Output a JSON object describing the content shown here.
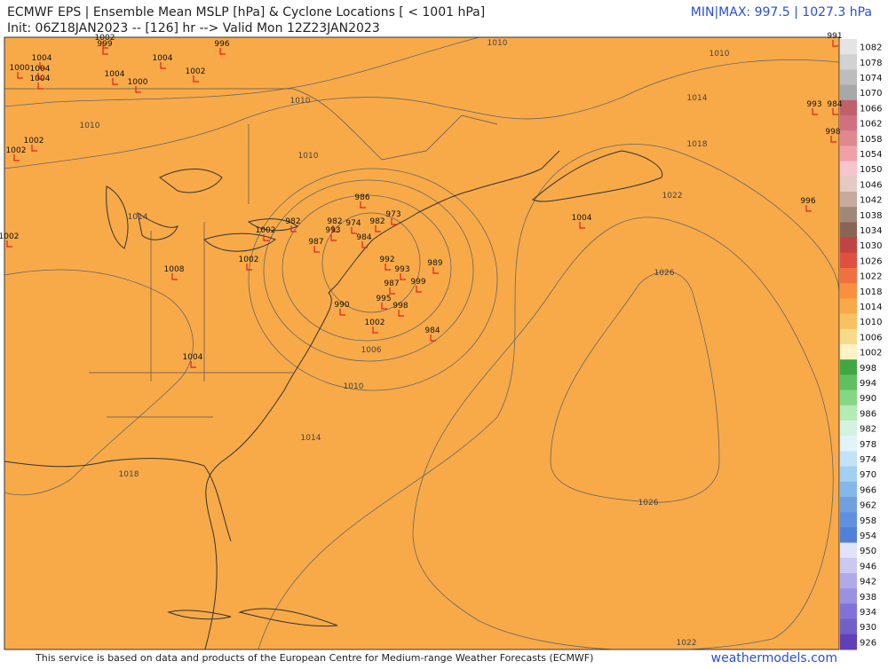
{
  "header": {
    "title": "ECMWF EPS | Ensemble Mean MSLP [hPa] & Cyclone Locations [ < 1001 hPa]",
    "init": "Init: 06Z18JAN2023 -- [126] hr --> Valid Mon 12Z23JAN2023",
    "minmax": "MIN|MAX: 997.5 | 1027.3 hPa"
  },
  "colorbar": {
    "labels": [
      1082,
      1078,
      1074,
      1070,
      1066,
      1062,
      1058,
      1054,
      1050,
      1046,
      1042,
      1038,
      1034,
      1030,
      1026,
      1022,
      1018,
      1014,
      1010,
      1006,
      1002,
      998,
      994,
      990,
      986,
      982,
      978,
      974,
      970,
      966,
      962,
      958,
      954,
      950,
      946,
      942,
      938,
      934,
      930,
      926
    ],
    "colors": [
      "#e4e4e4",
      "#d2d2d2",
      "#bdbdbd",
      "#a8a8a8",
      "#c0606a",
      "#d07080",
      "#e08890",
      "#f0a0a8",
      "#f8c4cc",
      "#e4cac2",
      "#c8aaa0",
      "#a08878",
      "#8a6454",
      "#c04444",
      "#e05040",
      "#f07040",
      "#f89040",
      "#f8aa48",
      "#f8c262",
      "#f8da8a",
      "#fff2c4",
      "#40a840",
      "#60c060",
      "#84d884",
      "#b4eab4",
      "#d4f2e2",
      "#e2f4f8",
      "#c2e2f8",
      "#a2d0f0",
      "#84b8e8",
      "#70a0e0",
      "#6090e0",
      "#5080d8",
      "#e2e2f8",
      "#cacaf0",
      "#b2aae8",
      "#9a92e0",
      "#8272d8",
      "#7060c8",
      "#6040b8"
    ]
  },
  "contour_labels": [
    1010,
    1010,
    1014,
    1018,
    1022,
    1026,
    1026,
    1022,
    1014,
    1010,
    1006,
    1010,
    1010,
    1010,
    1014,
    1018
  ],
  "cyclone_labels": [
    1002,
    999,
    996,
    1004,
    1004,
    1000,
    1004,
    1004,
    1004,
    1000,
    1002,
    1002,
    1002,
    1002,
    1008,
    1002,
    1004,
    986,
    982,
    982,
    974,
    982,
    973,
    987,
    1002,
    993,
    984,
    993,
    989,
    992,
    999,
    987,
    995,
    998,
    990,
    1002,
    984,
    1004,
    996,
    993,
    984,
    998,
    991
  ],
  "footer": {
    "credit": "This service is based on data and products of the European Centre for Medium-range Weather Forecasts (ECMWF)",
    "site": "weathermodels.com"
  }
}
